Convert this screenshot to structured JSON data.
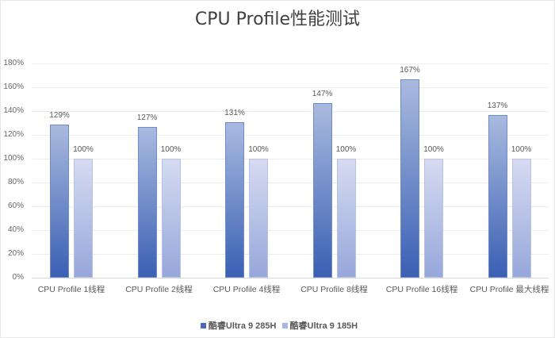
{
  "title": "CPU Profile性能测试",
  "y_ticks": [
    "180%",
    "160%",
    "140%",
    "120%",
    "100%",
    "80%",
    "60%",
    "40%",
    "20%",
    "0%"
  ],
  "legend": [
    {
      "label": "酷睿Ultra 9 285H",
      "color": "#4a6cb8"
    },
    {
      "label": "酷睿Ultra 9 185H",
      "color": "#a9b6e2"
    }
  ],
  "chart_data": {
    "type": "bar",
    "title": "CPU Profile性能测试",
    "categories": [
      "CPU Profile 1线程",
      "CPU Profile 2线程",
      "CPU Profile 4线程",
      "CPU Profile 8线程",
      "CPU Profile 16线程",
      "CPU Profile 最大线程"
    ],
    "series": [
      {
        "name": "酷睿Ultra 9 285H",
        "values": [
          129,
          127,
          131,
          147,
          167,
          137
        ],
        "labels": [
          "129%",
          "127%",
          "131%",
          "147%",
          "167%",
          "137%"
        ]
      },
      {
        "name": "酷睿Ultra 9 185H",
        "values": [
          100,
          100,
          100,
          100,
          100,
          100
        ],
        "labels": [
          "100%",
          "100%",
          "100%",
          "100%",
          "100%",
          "100%"
        ]
      }
    ],
    "xlabel": "",
    "ylabel": "",
    "ylim": [
      0,
      180
    ],
    "y_unit": "%",
    "grid": true,
    "legend_position": "bottom"
  }
}
